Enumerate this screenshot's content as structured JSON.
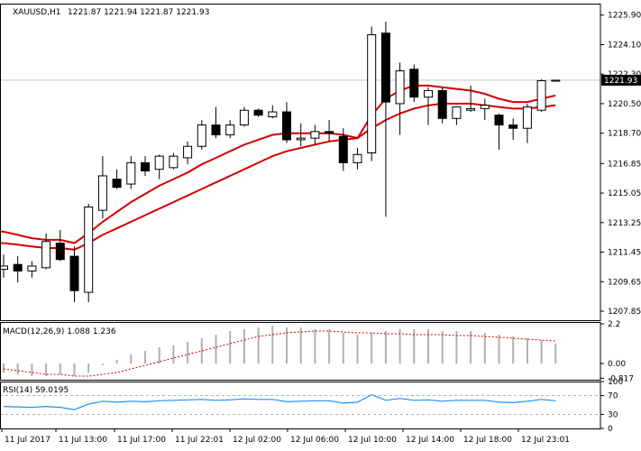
{
  "main_header": {
    "symbol": "XAUUSD,H1",
    "ohlc": "1221.87 1221.94 1221.87 1221.93"
  },
  "current_price": "1221.93",
  "macd_header": "MACD(12,26,9) 1.088 1.236",
  "rsi_header": "RSI(14) 59.0195",
  "colors": {
    "background": "#ffffff",
    "grid": "#c0c0c0",
    "ma": "#d40000",
    "macd_signal": "#d40000",
    "macd_hist": "#b0b0b0",
    "rsi": "#1e90ff",
    "price_line": "#a0a0a0"
  },
  "chart_data": [
    {
      "type": "candlestick",
      "title": "XAUUSD,H1",
      "ylim": [
        1207.3,
        1226.6
      ],
      "y_ticks": [
        "1225.90",
        "1224.10",
        "1222.30",
        "1220.50",
        "1218.70",
        "1216.85",
        "1215.05",
        "1213.25",
        "1211.45",
        "1209.65",
        "1207.85"
      ],
      "x_ticks": [
        "11 Jul 2017",
        "11 Jul 13:00",
        "11 Jul 17:00",
        "11 Jul 22:01",
        "12 Jul 02:00",
        "12 Jul 06:00",
        "12 Jul 10:00",
        "12 Jul 14:00",
        "12 Jul 18:00",
        "12 Jul 23:01"
      ],
      "candles": [
        {
          "o": 1210.4,
          "h": 1211.3,
          "l": 1209.9,
          "c": 1210.6
        },
        {
          "o": 1210.7,
          "h": 1211.2,
          "l": 1209.6,
          "c": 1210.3
        },
        {
          "o": 1210.3,
          "h": 1210.9,
          "l": 1209.9,
          "c": 1210.6
        },
        {
          "o": 1210.5,
          "h": 1212.6,
          "l": 1210.4,
          "c": 1212.1
        },
        {
          "o": 1212.0,
          "h": 1212.8,
          "l": 1210.9,
          "c": 1211.0
        },
        {
          "o": 1211.2,
          "h": 1211.8,
          "l": 1208.4,
          "c": 1209.1
        },
        {
          "o": 1209.0,
          "h": 1214.4,
          "l": 1208.4,
          "c": 1214.2
        },
        {
          "o": 1214.0,
          "h": 1217.3,
          "l": 1213.5,
          "c": 1216.1
        },
        {
          "o": 1215.9,
          "h": 1216.5,
          "l": 1215.3,
          "c": 1215.4
        },
        {
          "o": 1215.6,
          "h": 1217.3,
          "l": 1215.3,
          "c": 1216.9
        },
        {
          "o": 1216.9,
          "h": 1217.3,
          "l": 1216.1,
          "c": 1216.4
        },
        {
          "o": 1216.5,
          "h": 1217.4,
          "l": 1215.9,
          "c": 1217.3
        },
        {
          "o": 1216.6,
          "h": 1217.5,
          "l": 1216.5,
          "c": 1217.3
        },
        {
          "o": 1217.2,
          "h": 1218.2,
          "l": 1216.8,
          "c": 1217.9
        },
        {
          "o": 1217.9,
          "h": 1219.5,
          "l": 1217.7,
          "c": 1219.2
        },
        {
          "o": 1219.2,
          "h": 1220.3,
          "l": 1218.4,
          "c": 1218.6
        },
        {
          "o": 1218.6,
          "h": 1219.5,
          "l": 1218.4,
          "c": 1219.2
        },
        {
          "o": 1219.2,
          "h": 1220.3,
          "l": 1219.1,
          "c": 1220.1
        },
        {
          "o": 1220.1,
          "h": 1220.2,
          "l": 1219.7,
          "c": 1219.8
        },
        {
          "o": 1219.7,
          "h": 1220.4,
          "l": 1219.6,
          "c": 1220.0
        },
        {
          "o": 1220.0,
          "h": 1220.6,
          "l": 1218.1,
          "c": 1218.3
        },
        {
          "o": 1218.3,
          "h": 1219.3,
          "l": 1217.9,
          "c": 1218.4
        },
        {
          "o": 1218.4,
          "h": 1219.2,
          "l": 1218.0,
          "c": 1218.8
        },
        {
          "o": 1218.8,
          "h": 1219.5,
          "l": 1218.2,
          "c": 1218.7
        },
        {
          "o": 1218.5,
          "h": 1219.0,
          "l": 1216.4,
          "c": 1216.9
        },
        {
          "o": 1216.9,
          "h": 1217.8,
          "l": 1216.5,
          "c": 1217.4
        },
        {
          "o": 1217.5,
          "h": 1225.2,
          "l": 1217.0,
          "c": 1224.7
        },
        {
          "o": 1224.8,
          "h": 1225.5,
          "l": 1213.6,
          "c": 1220.6
        },
        {
          "o": 1220.5,
          "h": 1223.0,
          "l": 1218.6,
          "c": 1222.5
        },
        {
          "o": 1222.6,
          "h": 1222.9,
          "l": 1220.6,
          "c": 1220.9
        },
        {
          "o": 1220.9,
          "h": 1221.5,
          "l": 1219.2,
          "c": 1221.3
        },
        {
          "o": 1221.3,
          "h": 1221.5,
          "l": 1219.3,
          "c": 1219.6
        },
        {
          "o": 1219.6,
          "h": 1220.3,
          "l": 1219.2,
          "c": 1220.3
        },
        {
          "o": 1220.1,
          "h": 1221.6,
          "l": 1220.0,
          "c": 1220.2
        },
        {
          "o": 1220.2,
          "h": 1220.8,
          "l": 1219.5,
          "c": 1220.4
        },
        {
          "o": 1219.8,
          "h": 1219.9,
          "l": 1217.7,
          "c": 1219.2
        },
        {
          "o": 1219.2,
          "h": 1219.6,
          "l": 1218.3,
          "c": 1219.0
        },
        {
          "o": 1219.0,
          "h": 1220.5,
          "l": 1218.1,
          "c": 1220.3
        },
        {
          "o": 1220.1,
          "h": 1222.0,
          "l": 1220.0,
          "c": 1221.9
        },
        {
          "o": 1221.87,
          "h": 1221.94,
          "l": 1221.87,
          "c": 1221.93
        }
      ],
      "ma_fast": [
        1212.7,
        1212.5,
        1212.3,
        1212.2,
        1212.2,
        1212.0,
        1212.6,
        1213.3,
        1213.9,
        1214.5,
        1215.0,
        1215.5,
        1215.9,
        1216.3,
        1216.8,
        1217.2,
        1217.6,
        1218.0,
        1218.3,
        1218.6,
        1218.7,
        1218.7,
        1218.7,
        1218.7,
        1218.6,
        1218.4,
        1219.8,
        1220.8,
        1221.3,
        1221.6,
        1221.6,
        1221.5,
        1221.4,
        1221.3,
        1221.1,
        1220.8,
        1220.6,
        1220.6,
        1220.8,
        1221.0
      ],
      "ma_slow": [
        1212.0,
        1211.9,
        1211.8,
        1211.7,
        1211.7,
        1211.6,
        1212.0,
        1212.5,
        1212.9,
        1213.3,
        1213.7,
        1214.1,
        1214.5,
        1214.9,
        1215.3,
        1215.7,
        1216.1,
        1216.5,
        1216.9,
        1217.3,
        1217.6,
        1217.8,
        1218.0,
        1218.2,
        1218.3,
        1218.4,
        1219.0,
        1219.5,
        1219.9,
        1220.2,
        1220.4,
        1220.5,
        1220.5,
        1220.5,
        1220.4,
        1220.3,
        1220.2,
        1220.2,
        1220.3,
        1220.4
      ]
    },
    {
      "type": "bar",
      "title": "MACD(12,26,9) 1.088 1.236",
      "ylim": [
        -0.9,
        2.3
      ],
      "y_ticks": [
        "2.2",
        "0.00",
        "-0.817"
      ],
      "histogram": [
        -0.5,
        -0.6,
        -0.7,
        -0.7,
        -0.6,
        -0.7,
        -0.5,
        -0.1,
        0.2,
        0.5,
        0.7,
        0.9,
        1.0,
        1.2,
        1.4,
        1.6,
        1.8,
        1.9,
        2.0,
        2.1,
        2.0,
        2.0,
        1.9,
        1.9,
        1.7,
        1.6,
        1.7,
        1.8,
        1.9,
        1.9,
        1.9,
        1.8,
        1.8,
        1.8,
        1.7,
        1.6,
        1.5,
        1.4,
        1.3,
        1.1
      ],
      "signal": [
        -0.3,
        -0.4,
        -0.5,
        -0.6,
        -0.6,
        -0.7,
        -0.7,
        -0.6,
        -0.5,
        -0.3,
        -0.1,
        0.1,
        0.3,
        0.5,
        0.7,
        0.9,
        1.1,
        1.3,
        1.5,
        1.6,
        1.7,
        1.75,
        1.8,
        1.8,
        1.75,
        1.7,
        1.7,
        1.65,
        1.65,
        1.6,
        1.6,
        1.6,
        1.55,
        1.55,
        1.5,
        1.45,
        1.4,
        1.35,
        1.3,
        1.25
      ]
    },
    {
      "type": "line",
      "title": "RSI(14) 59.0195",
      "ylim": [
        0,
        100
      ],
      "y_ticks": [
        "100",
        "70",
        "30",
        "0"
      ],
      "levels": [
        70,
        30
      ],
      "values": [
        47,
        46,
        45,
        47,
        45,
        40,
        52,
        58,
        56,
        58,
        57,
        59,
        60,
        61,
        62,
        60,
        61,
        63,
        62,
        62,
        57,
        58,
        59,
        59,
        54,
        56,
        72,
        60,
        64,
        60,
        61,
        58,
        60,
        60,
        60,
        56,
        55,
        58,
        62,
        59
      ]
    }
  ]
}
